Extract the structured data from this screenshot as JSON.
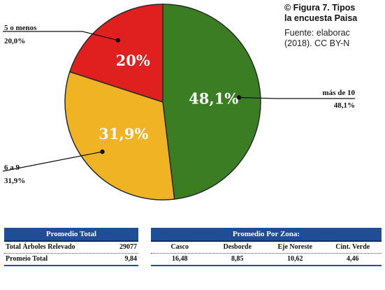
{
  "caption": {
    "figure": "© Figura 7. Tipos",
    "figure_line2": "la encuesta Paisa",
    "source_line1": "Fuente: elaborac",
    "source_line2": "(2018). CC BY-N"
  },
  "chart_data": {
    "type": "pie",
    "title": "",
    "slices": [
      {
        "label": "más de 10",
        "value": 48.1,
        "display": "48,1%",
        "legend": "48,1%",
        "color": "#3b7d23"
      },
      {
        "label": "6 a 9",
        "value": 31.9,
        "display": "31,9%",
        "legend": "31,9%",
        "color": "#f0b323"
      },
      {
        "label": "5 o menos",
        "value": 20.0,
        "display": "20%",
        "legend": "20,0%",
        "color": "#e01f1f"
      }
    ]
  },
  "total_table": {
    "header": "Promedio Total",
    "rows": [
      {
        "label": "Total Árboles Relevado",
        "value": "29077"
      },
      {
        "label": "Promeio Total",
        "value": "9,84"
      }
    ]
  },
  "zone_table": {
    "header": "Promedio Por Zona:",
    "columns": [
      "Casco",
      "Desborde",
      "Eje Noreste",
      "Cint. Verde"
    ],
    "values": [
      "16,48",
      "8,85",
      "10,62",
      "4,46"
    ]
  }
}
